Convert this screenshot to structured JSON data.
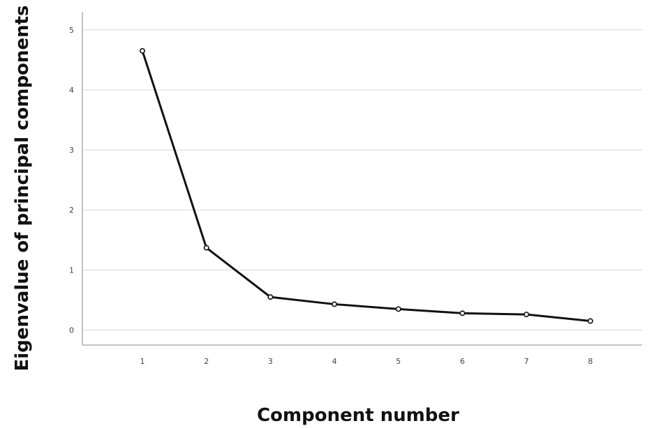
{
  "chart_data": {
    "type": "line",
    "title": "",
    "xlabel": "Component number",
    "ylabel": "Eigenvalue of principal components",
    "x": [
      1,
      2,
      3,
      4,
      5,
      6,
      7,
      8
    ],
    "y_ticks": [
      0,
      1,
      2,
      3,
      4,
      5
    ],
    "ylim": [
      -0.25,
      5.3
    ],
    "grid": true,
    "series": [
      {
        "values": [
          4.65,
          1.37,
          0.55,
          0.43,
          0.35,
          0.28,
          0.26,
          0.15
        ]
      }
    ],
    "colors": {
      "line": "#111111",
      "grid": "#d9d9d9",
      "axis": "#888888",
      "marker_fill": "#ffffff"
    }
  }
}
